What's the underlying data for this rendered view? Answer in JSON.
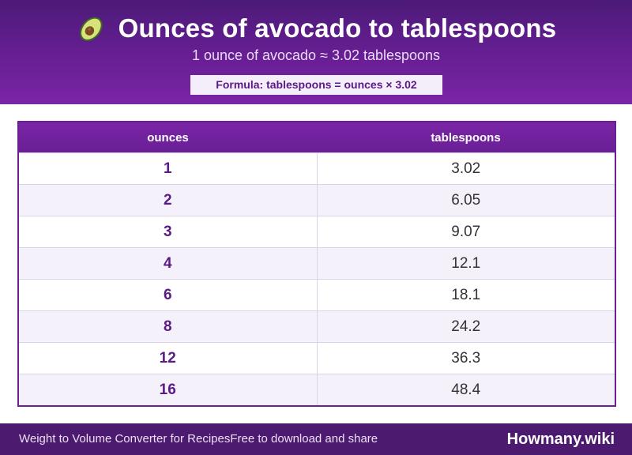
{
  "header": {
    "icon": "avocado-icon",
    "title": "Ounces of avocado to tablespoons",
    "subtitle": "1 ounce of avocado ≈ 3.02 tablespoons",
    "formula": "Formula: tablespoons = ounces × 3.02"
  },
  "table": {
    "columns": [
      "ounces",
      "tablespoons"
    ],
    "rows": [
      {
        "ounces": "1",
        "tablespoons": "3.02"
      },
      {
        "ounces": "2",
        "tablespoons": "6.05"
      },
      {
        "ounces": "3",
        "tablespoons": "9.07"
      },
      {
        "ounces": "4",
        "tablespoons": "12.1"
      },
      {
        "ounces": "6",
        "tablespoons": "18.1"
      },
      {
        "ounces": "8",
        "tablespoons": "24.2"
      },
      {
        "ounces": "12",
        "tablespoons": "36.3"
      },
      {
        "ounces": "16",
        "tablespoons": "48.4"
      }
    ]
  },
  "footer": {
    "left_text_1": "Weight to Volume Converter for Recipes",
    "left_text_2": "Free to download and share",
    "brand": "Howmany.wiki"
  },
  "colors": {
    "primary": "#6a1f96",
    "dark": "#4c1a6e",
    "row_alt": "#f5f1fa"
  }
}
